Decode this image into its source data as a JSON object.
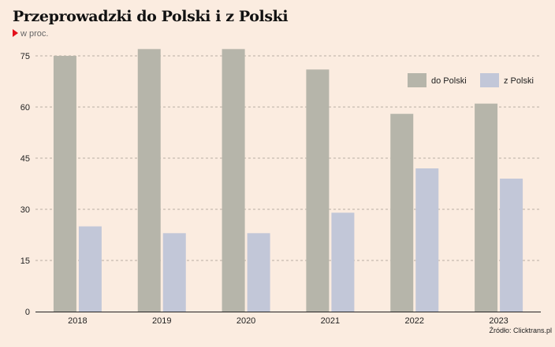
{
  "chart_data": {
    "type": "bar",
    "title": "Przeprowadzki do Polski i z Polski",
    "subtitle": "w proc.",
    "categories": [
      "2018",
      "2019",
      "2020",
      "2021",
      "2022",
      "2023"
    ],
    "series": [
      {
        "name": "do Polski",
        "color": "#b6b5aa",
        "values": [
          75,
          77,
          77,
          71,
          58,
          61
        ]
      },
      {
        "name": "z Polski",
        "color": "#c2c7d8",
        "values": [
          25,
          23,
          23,
          29,
          42,
          39
        ]
      }
    ],
    "yticks": [
      0,
      15,
      30,
      45,
      60,
      75
    ],
    "ylim": [
      0,
      80
    ],
    "xlabel": "",
    "ylabel": "",
    "grid": true,
    "legend": "top-right",
    "source": "Źródło: Clicktrans.pl"
  }
}
